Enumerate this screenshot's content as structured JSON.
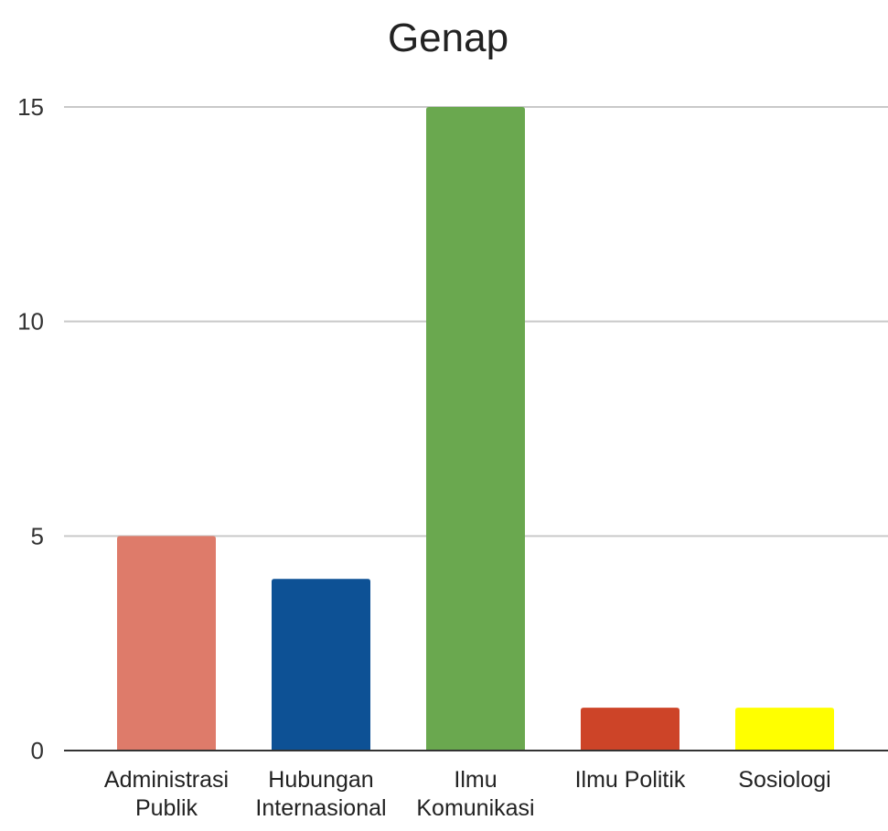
{
  "chart_data": {
    "type": "bar",
    "title": "Genap",
    "xlabel": "",
    "ylabel": "",
    "categories": [
      [
        "Administrasi",
        "Publik"
      ],
      [
        "Hubungan",
        "Internasional"
      ],
      [
        "Ilmu",
        "Komunikasi"
      ],
      [
        "Ilmu Politik"
      ],
      [
        "Sosiologi"
      ]
    ],
    "values": [
      5,
      4,
      15,
      1,
      1
    ],
    "colors": [
      "#DE7B6A",
      "#0D5195",
      "#6AA84F",
      "#CD4428",
      "#FFFF00"
    ],
    "ylim": [
      0,
      15
    ],
    "yticks": [
      "0",
      "5",
      "10",
      "15"
    ],
    "ytick_values": [
      0,
      5,
      10,
      15
    ],
    "grid": true,
    "legend": "none"
  }
}
